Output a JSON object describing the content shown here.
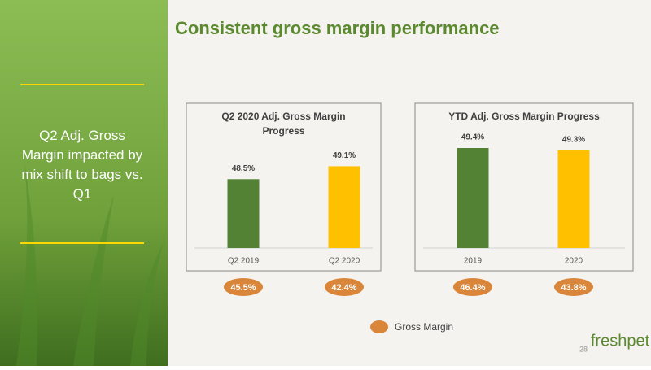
{
  "slide": {
    "title": "Consistent gross margin performance",
    "sidebar_text": "Q2 Adj. Gross Margin impacted by mix shift to bags vs. Q1",
    "legend": {
      "label": "Gross Margin",
      "color": "#d9863a"
    },
    "page_number": "28",
    "logo": "freshpet"
  },
  "chart_data": [
    {
      "type": "bar",
      "title": "Q2 2020 Adj. Gross Margin Progress",
      "categories": [
        "Q2 2019",
        "Q2 2020"
      ],
      "values": [
        48.5,
        49.1
      ],
      "value_labels": [
        "48.5%",
        "49.1%"
      ],
      "colors": [
        "#548235",
        "#ffc000"
      ],
      "ylim": [
        45.3,
        50.4
      ],
      "gross_margin": {
        "values": [
          45.5,
          42.4
        ],
        "value_labels": [
          "45.5%",
          "42.4%"
        ]
      }
    },
    {
      "type": "bar",
      "title": "YTD Adj. Gross Margin Progress",
      "categories": [
        "2019",
        "2020"
      ],
      "values": [
        49.4,
        49.3
      ],
      "value_labels": [
        "49.4%",
        "49.3%"
      ],
      "colors": [
        "#548235",
        "#ffc000"
      ],
      "ylim": [
        45.3,
        49.8
      ],
      "gross_margin": {
        "values": [
          46.4,
          43.8
        ],
        "value_labels": [
          "46.4%",
          "43.8%"
        ]
      }
    }
  ]
}
